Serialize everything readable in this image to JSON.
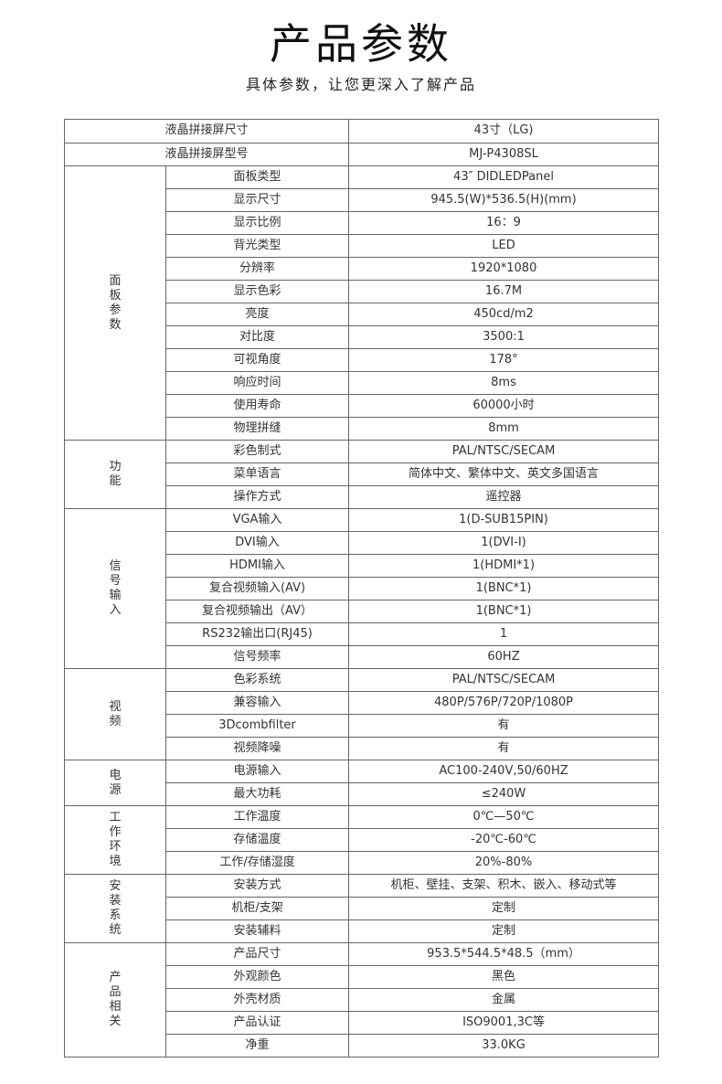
{
  "header": {
    "title": "产品参数",
    "subtitle": "具体参数，让您更深入了解产品"
  },
  "top_rows": [
    {
      "label": "液晶拼接屏尺寸",
      "value": "43寸（LG)"
    },
    {
      "label": "液晶拼接屏型号",
      "value": "MJ-P4308SL"
    }
  ],
  "groups": [
    {
      "name": "面板参数",
      "rows": [
        {
          "label": "面板类型",
          "value": "43″ DIDLEDPanel"
        },
        {
          "label": "显示尺寸",
          "value": "945.5(W)*536.5(H)(mm)"
        },
        {
          "label": "显示比例",
          "value": "16：9"
        },
        {
          "label": "背光类型",
          "value": "LED"
        },
        {
          "label": "分辨率",
          "value": "1920*1080"
        },
        {
          "label": "显示色彩",
          "value": "16.7M"
        },
        {
          "label": "亮度",
          "value": "450cd/m2"
        },
        {
          "label": "对比度",
          "value": "3500:1"
        },
        {
          "label": "可视角度",
          "value": "178°"
        },
        {
          "label": "响应时间",
          "value": "8ms"
        },
        {
          "label": "使用寿命",
          "value": "60000小时"
        },
        {
          "label": "物理拼缝",
          "value": "8mm"
        }
      ]
    },
    {
      "name": "功能",
      "rows": [
        {
          "label": "彩色制式",
          "value": "PAL/NTSC/SECAM"
        },
        {
          "label": "菜单语言",
          "value": "简体中文、繁体中文、英文多国语言"
        },
        {
          "label": "操作方式",
          "value": "遥控器"
        }
      ]
    },
    {
      "name": "信号输入",
      "rows": [
        {
          "label": "VGA输入",
          "value": "1(D-SUB15PIN)"
        },
        {
          "label": "DVI输入",
          "value": "1(DVI-I)"
        },
        {
          "label": "HDMI输入",
          "value": "1(HDMI*1)"
        },
        {
          "label": "复合视频输入(AV)",
          "value": "1(BNC*1)"
        },
        {
          "label": "复合视频输出（AV）",
          "value": "1(BNC*1)"
        },
        {
          "label": "RS232输出口(RJ45)",
          "value": "1"
        },
        {
          "label": "信号频率",
          "value": "60HZ"
        }
      ]
    },
    {
      "name": "视频",
      "rows": [
        {
          "label": "色彩系统",
          "value": "PAL/NTSC/SECAM"
        },
        {
          "label": "兼容输入",
          "value": "480P/576P/720P/1080P"
        },
        {
          "label": "3Dcombfilter",
          "value": "有"
        },
        {
          "label": "视频降噪",
          "value": "有"
        }
      ]
    },
    {
      "name": "电源",
      "rows": [
        {
          "label": "电源输入",
          "value": "AC100-240V,50/60HZ"
        },
        {
          "label": "最大功耗",
          "value": "≤240W"
        }
      ]
    },
    {
      "name": "工作环境",
      "rows": [
        {
          "label": "工作温度",
          "value": "0℃—50℃"
        },
        {
          "label": "存储温度",
          "value": "-20℃-60℃"
        },
        {
          "label": "工作/存储湿度",
          "value": "20%-80%"
        }
      ]
    },
    {
      "name": "安装系统",
      "rows": [
        {
          "label": "安装方式",
          "value": "机柜、壁挂、支架、积木、嵌入、移动式等"
        },
        {
          "label": "机柜/支架",
          "value": "定制"
        },
        {
          "label": "安装辅料",
          "value": "定制"
        }
      ]
    },
    {
      "name": "产品相关",
      "rows": [
        {
          "label": "产品尺寸",
          "value": "953.5*544.5*48.5（mm）"
        },
        {
          "label": "外观颜色",
          "value": "黑色"
        },
        {
          "label": "外壳材质",
          "value": "金属"
        },
        {
          "label": "产品认证",
          "value": "ISO9001,3C等"
        },
        {
          "label": "净重",
          "value": "33.0KG"
        }
      ]
    }
  ]
}
